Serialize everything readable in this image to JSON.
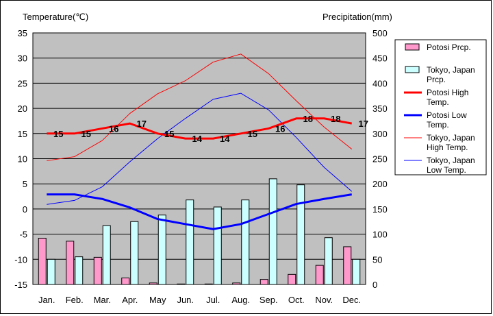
{
  "chart_data": {
    "type": "bar+line",
    "left_axis_title": "Temperature(℃)",
    "right_axis_title": "Precipitation(mm)",
    "categories": [
      "Jan.",
      "Feb.",
      "Mar.",
      "Apr.",
      "May",
      "Jun.",
      "Jul.",
      "Aug.",
      "Sep.",
      "Oct.",
      "Nov.",
      "Dec."
    ],
    "ylim_temperature": [
      -15,
      35
    ],
    "ylim_precipitation": [
      0,
      500
    ],
    "yticks_temperature": [
      "35",
      "30",
      "25",
      "20",
      "15",
      "10",
      "5",
      "0",
      "-5",
      "-10",
      "-15"
    ],
    "yticks_precipitation": [
      "500",
      "450",
      "400",
      "350",
      "300",
      "250",
      "200",
      "150",
      "100",
      "50",
      "0"
    ],
    "bars": [
      {
        "name": "Potosi Prcp.",
        "color": "#ff99cc",
        "values": [
          92,
          86,
          54,
          13,
          3,
          1,
          1,
          3,
          10,
          20,
          38,
          75
        ]
      },
      {
        "name": "Tokyo, Japan Prcp.",
        "color": "#ccffff",
        "values": [
          50,
          55,
          117,
          125,
          138,
          168,
          154,
          168,
          210,
          198,
          93,
          50
        ]
      }
    ],
    "lines": [
      {
        "name": "Potosi High Temp.",
        "color": "#ff0000",
        "width": 3,
        "values": [
          15,
          15,
          16,
          17,
          15,
          14,
          14,
          15,
          16,
          18,
          18,
          17
        ],
        "labels": [
          "15",
          "15",
          "16",
          "17",
          "15",
          "14",
          "14",
          "15",
          "16",
          "18",
          "18",
          "17"
        ]
      },
      {
        "name": "Potosi Low Temp.",
        "color": "#0000ff",
        "width": 3,
        "values": [
          2.9,
          2.9,
          2,
          0.3,
          -2,
          -3,
          -4,
          -3,
          -1,
          1,
          2,
          2.9
        ]
      },
      {
        "name": "Tokyo, Japan High Temp.",
        "color": "#ff0000",
        "width": 1,
        "values": [
          9.6,
          10.4,
          13.6,
          19,
          22.9,
          25.5,
          29.2,
          30.8,
          26.9,
          21.5,
          16.3,
          11.9
        ]
      },
      {
        "name": "Tokyo, Japan Low Temp.",
        "color": "#0000ff",
        "width": 1,
        "values": [
          0.9,
          1.7,
          4.4,
          9.4,
          14,
          18,
          21.8,
          23,
          19.7,
          14.2,
          8.3,
          3.5
        ]
      }
    ],
    "legend": [
      {
        "lines": [
          "Potosi Prcp."
        ],
        "kind": "bar",
        "color": "#ff99cc"
      },
      {
        "lines": [
          "Tokyo, Japan",
          "Prcp."
        ],
        "kind": "bar",
        "color": "#ccffff"
      },
      {
        "lines": [
          "Potosi High",
          "Temp."
        ],
        "kind": "line",
        "color": "#ff0000",
        "width": 3
      },
      {
        "lines": [
          "Potosi Low",
          "Temp."
        ],
        "kind": "line",
        "color": "#0000ff",
        "width": 3
      },
      {
        "lines": [
          "Tokyo, Japan",
          "High Temp."
        ],
        "kind": "line",
        "color": "#ff0000",
        "width": 1
      },
      {
        "lines": [
          "Tokyo, Japan",
          "Low Temp."
        ],
        "kind": "line",
        "color": "#0000ff",
        "width": 1
      }
    ],
    "plot_background": "#c0c0c0",
    "grid": true,
    "legend_position": "right"
  }
}
